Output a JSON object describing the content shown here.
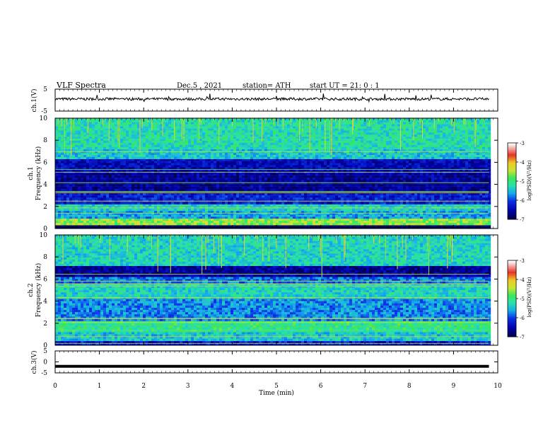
{
  "header": {
    "title": "VLF  Spectra",
    "date": "Dec.5  , 2021",
    "station": "station= ATH",
    "start_ut": "start  UT  =    21: 0   : 1"
  },
  "colors": {
    "waveform": "#000000",
    "spec_dark": "#000060",
    "spec_blue": "#0a2fd6",
    "spec_cyan": "#14c8e6",
    "spec_green": "#32e67a",
    "spec_yellow": "#e6e632",
    "spec_red": "#e61e1e"
  },
  "chart_data": [
    {
      "type": "line",
      "panel": "ch1-waveform",
      "ylabel": "ch.1(V)",
      "ylim": [
        -5,
        5
      ],
      "yticks": [
        "5",
        "-5"
      ],
      "xlim": [
        0,
        10
      ],
      "x_unit": "min",
      "baseline_v": 0.5,
      "amplitude_v": 0.6,
      "x_range": [
        0,
        9.8
      ]
    },
    {
      "type": "heatmap",
      "panel": "ch1-spectrogram",
      "ylabel_line1": "ch.1",
      "ylabel_line2": "Frequency  (kHz)",
      "ylim": [
        0,
        10
      ],
      "yticks": [
        "0",
        "2",
        "4",
        "6",
        "8",
        "10"
      ],
      "xlim": [
        0,
        10
      ],
      "x_range": [
        0,
        9.8
      ],
      "bands_khz": [
        {
          "from": 0.0,
          "to": 0.3,
          "level": -7.0
        },
        {
          "from": 0.3,
          "to": 0.9,
          "level": -4.6
        },
        {
          "from": 0.9,
          "to": 1.6,
          "level": -5.6
        },
        {
          "from": 1.6,
          "to": 2.2,
          "level": -5.3
        },
        {
          "from": 2.2,
          "to": 3.2,
          "level": -6.2
        },
        {
          "from": 3.2,
          "to": 5.0,
          "level": -6.6
        },
        {
          "from": 5.0,
          "to": 6.3,
          "level": -6.4
        },
        {
          "from": 6.3,
          "to": 7.2,
          "level": -5.4
        },
        {
          "from": 7.2,
          "to": 10.0,
          "level": -5.2
        }
      ],
      "colorbar": {
        "label": "log(PSD)(V²/Hz)",
        "ticks": [
          "-3",
          "-4",
          "-5",
          "-6",
          "-7"
        ],
        "range": [
          -7,
          -3
        ]
      }
    },
    {
      "type": "heatmap",
      "panel": "ch2-spectrogram",
      "ylabel_line1": "ch.2",
      "ylabel_line2": "Frequency  (kHz)",
      "ylim": [
        0,
        10
      ],
      "yticks": [
        "0",
        "2",
        "4",
        "6",
        "8",
        "10"
      ],
      "xlim": [
        0,
        10
      ],
      "x_range": [
        0,
        9.8
      ],
      "bands_khz": [
        {
          "from": 0.0,
          "to": 0.4,
          "level": -6.2
        },
        {
          "from": 0.4,
          "to": 1.2,
          "level": -5.4
        },
        {
          "from": 1.2,
          "to": 2.2,
          "level": -5.0
        },
        {
          "from": 2.2,
          "to": 4.2,
          "level": -5.7
        },
        {
          "from": 4.2,
          "to": 5.6,
          "level": -5.3
        },
        {
          "from": 5.6,
          "to": 6.2,
          "level": -5.8
        },
        {
          "from": 6.2,
          "to": 7.2,
          "level": -6.6
        },
        {
          "from": 7.2,
          "to": 10.0,
          "level": -5.3
        }
      ],
      "colorbar": {
        "label": "log(PSD)(V²/Hz)",
        "ticks": [
          "-3",
          "-4",
          "-5",
          "-6",
          "-7"
        ],
        "range": [
          -7,
          -3
        ]
      }
    },
    {
      "type": "line",
      "panel": "ch3-waveform",
      "ylabel": "ch.3(V)",
      "ylim": [
        -5,
        5
      ],
      "yticks": [
        "5",
        "0",
        "-5"
      ],
      "xlim": [
        0,
        10
      ],
      "x_range": [
        0,
        9.8
      ],
      "constant_v": -2.0
    }
  ],
  "x_axis": {
    "label": "Time  (min)",
    "ticks": [
      "0",
      "1",
      "2",
      "3",
      "4",
      "5",
      "6",
      "7",
      "8",
      "9",
      "10"
    ]
  }
}
